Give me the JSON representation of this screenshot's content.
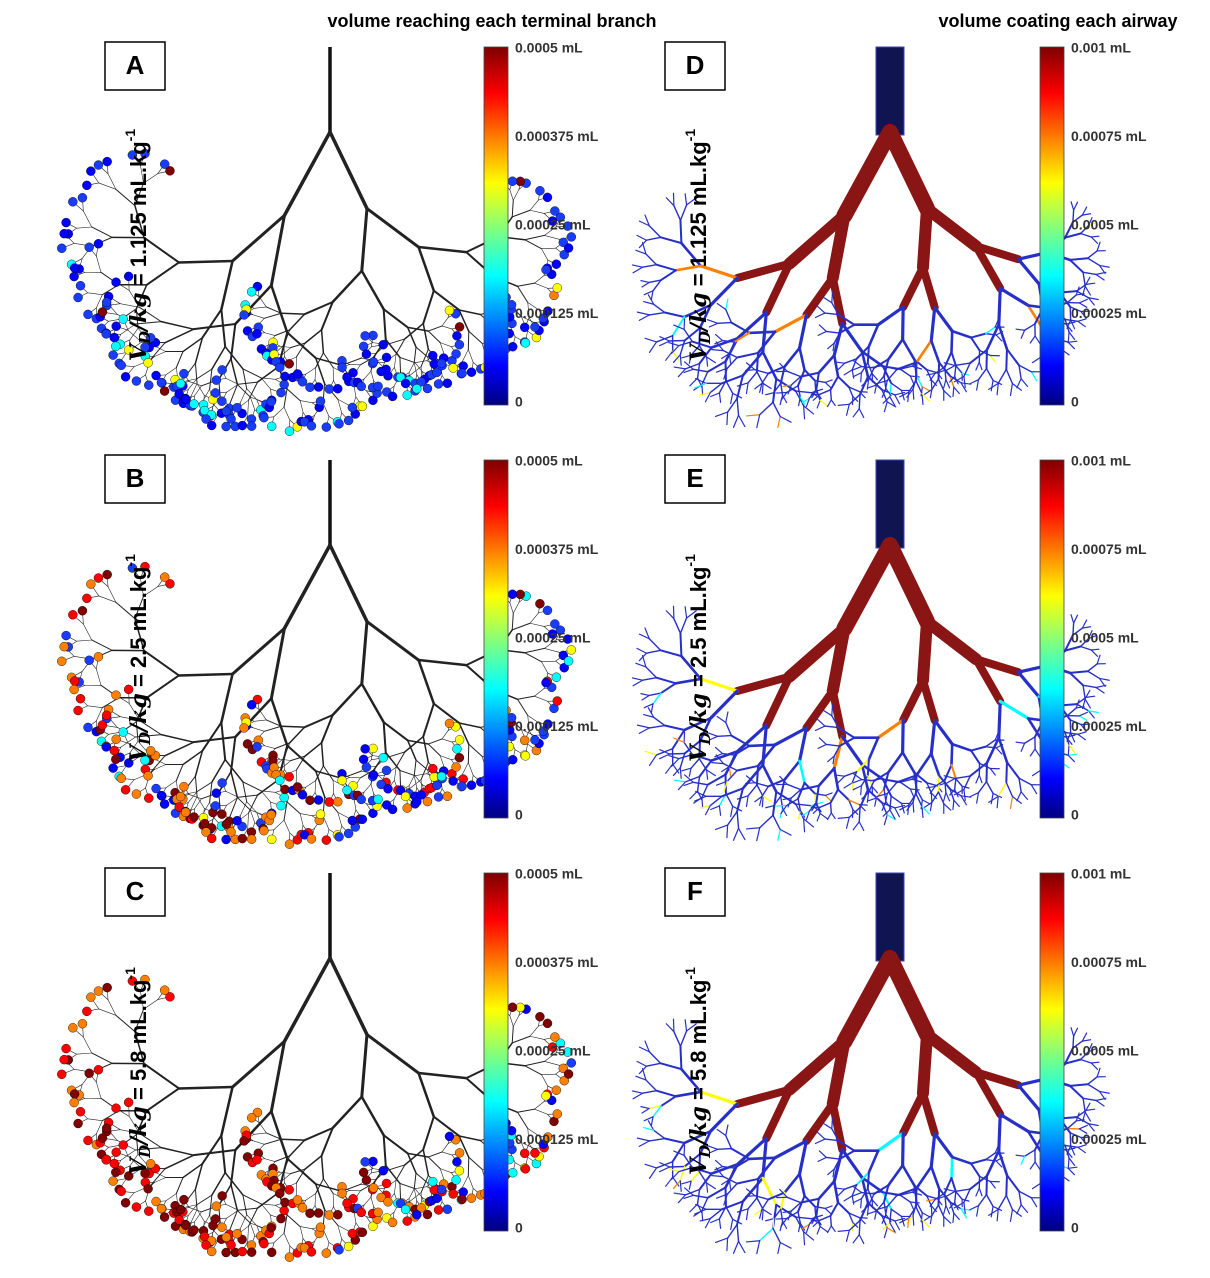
{
  "column_titles": [
    "volume reaching each terminal branch",
    "volume coating each airway"
  ],
  "panels": [
    {
      "letter": "A",
      "label": {
        "var": "V",
        "sub": "D",
        "per": "/kg",
        "text": " = 1.125 mL.kg",
        "sup": "-1"
      },
      "colorbar": [
        "0.0005 mL",
        "0.000375 mL",
        "0.00025 mL",
        "0.000125 mL",
        "0"
      ]
    },
    {
      "letter": "B",
      "label": {
        "var": "V",
        "sub": "D",
        "per": "/kg",
        "text": " = 2.5 mL.kg",
        "sup": "-1"
      },
      "colorbar": [
        "0.0005 mL",
        "0.000375 mL",
        "0.00025 mL",
        "0.000125 mL",
        "0"
      ]
    },
    {
      "letter": "C",
      "label": {
        "var": "V",
        "sub": "D",
        "per": "/kg",
        "text": " = 5.8 mL.kg",
        "sup": "-1"
      },
      "colorbar": [
        "0.0005 mL",
        "0.000375 mL",
        "0.00025 mL",
        "0.000125 mL",
        "0"
      ]
    },
    {
      "letter": "D",
      "label": {
        "var": "V",
        "sub": "D",
        "per": "/kg",
        "text": " = 1.125 mL.kg",
        "sup": "-1"
      },
      "colorbar": [
        "0.001 mL",
        "0.00075 mL",
        "0.0005 mL",
        "0.00025 mL",
        "0"
      ]
    },
    {
      "letter": "E",
      "label": {
        "var": "V",
        "sub": "D",
        "per": "/kg",
        "text": " = 2.5 mL.kg",
        "sup": "-1"
      },
      "colorbar": [
        "0.001 mL",
        "0.00075 mL",
        "0.0005 mL",
        "0.00025 mL",
        "0"
      ]
    },
    {
      "letter": "F",
      "label": {
        "var": "V",
        "sub": "D",
        "per": "/kg",
        "text": " = 5.8 mL.kg",
        "sup": "-1"
      },
      "colorbar": [
        "0.001 mL",
        "0.00075 mL",
        "0.0005 mL",
        "0.00025 mL",
        "0"
      ]
    }
  ]
}
